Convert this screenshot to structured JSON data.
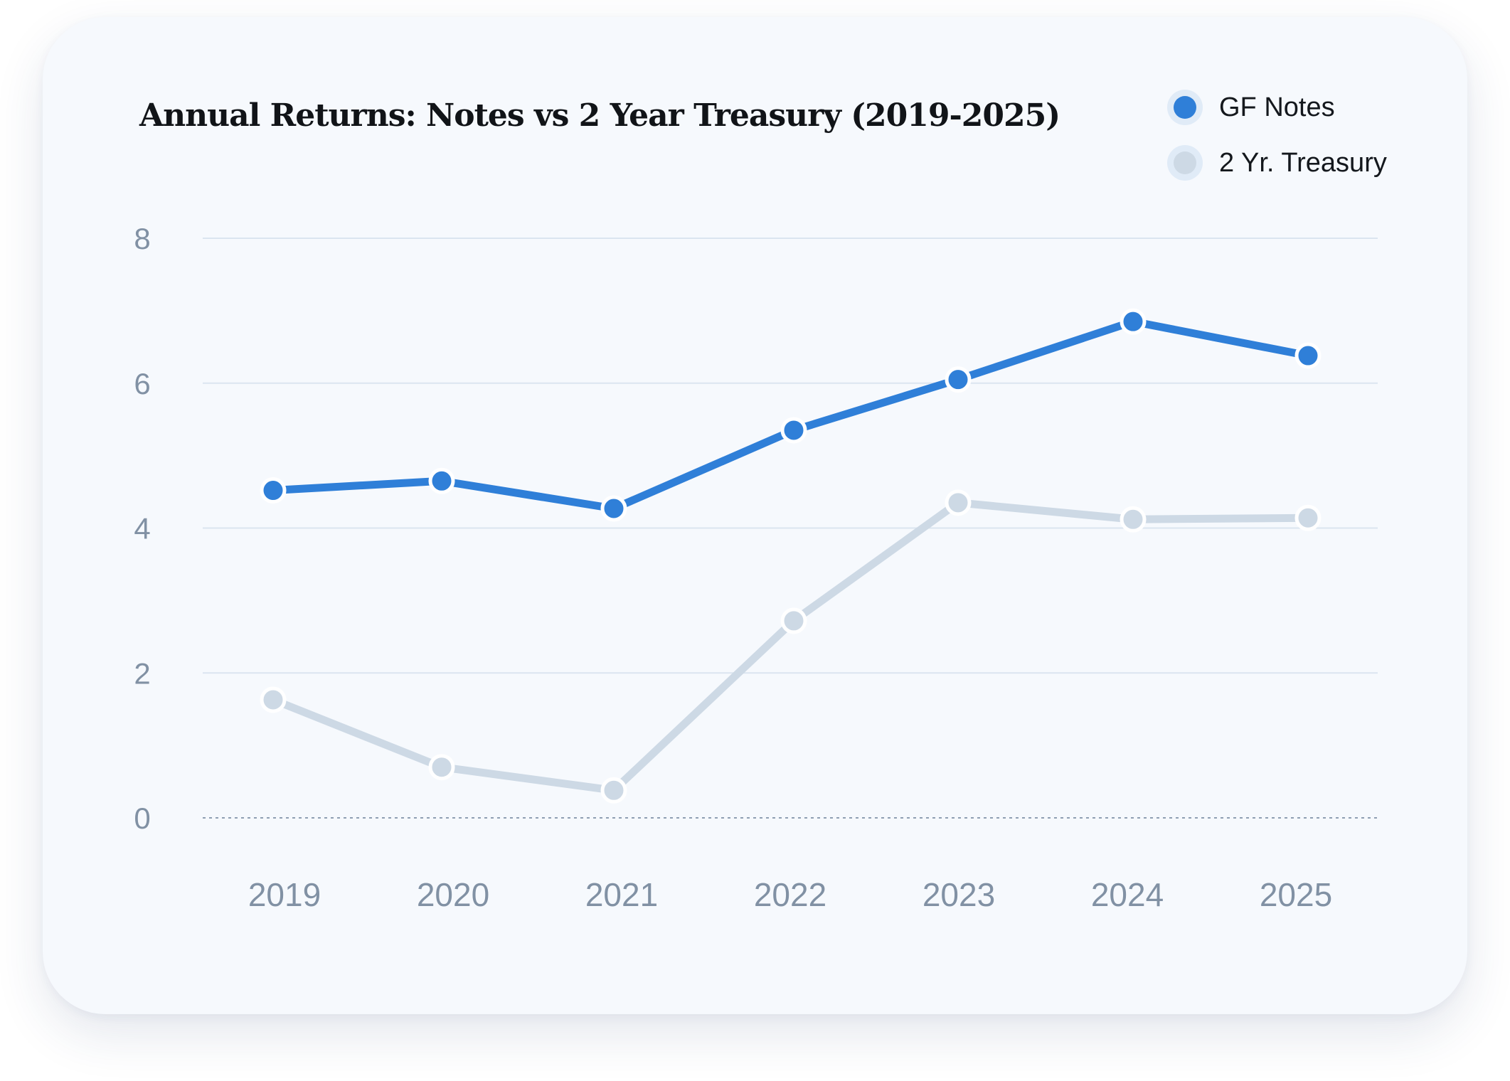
{
  "chart_data": {
    "type": "line",
    "title": "Annual Returns: Notes vs 2 Year Treasury (2019-2025)",
    "xlabel": "",
    "ylabel": "",
    "categories": [
      "2019",
      "2020",
      "2021",
      "2022",
      "2023",
      "2024",
      "2025"
    ],
    "ylim": [
      0,
      8
    ],
    "yticks": [
      0,
      2,
      4,
      6,
      8
    ],
    "grid": true,
    "legend_position": "top-right",
    "series": [
      {
        "name": "GF Notes",
        "color": "#2f7fd8",
        "values": [
          4.52,
          4.65,
          4.27,
          5.35,
          6.05,
          6.85,
          6.38
        ]
      },
      {
        "name": "2 Yr. Treasury",
        "color": "#cdd9e5",
        "values": [
          1.63,
          0.7,
          0.38,
          2.72,
          4.35,
          4.12,
          4.14
        ]
      }
    ]
  }
}
